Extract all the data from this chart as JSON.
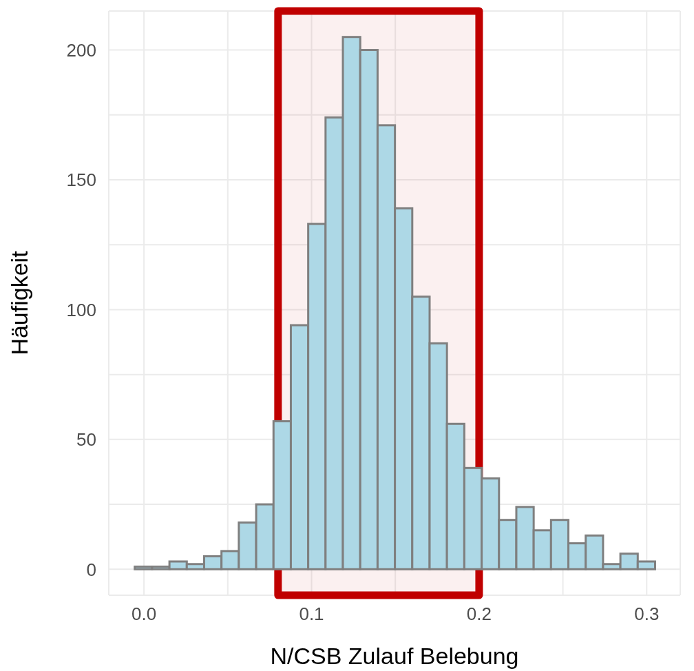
{
  "chart_data": {
    "type": "histogram",
    "xlabel": "N/CSB Zulauf Belebung",
    "ylabel": "Häufigkeit",
    "bins": [
      -0.0055,
      0.00485,
      0.0152,
      0.02555,
      0.0359,
      0.04625,
      0.0566,
      0.06695,
      0.0773,
      0.08765,
      0.098,
      0.10835,
      0.1187,
      0.12905,
      0.1394,
      0.14975,
      0.1601,
      0.17045,
      0.1808,
      0.19115,
      0.2015,
      0.21185,
      0.2222,
      0.23255,
      0.2429,
      0.25325,
      0.2636,
      0.27395,
      0.2843,
      0.29465,
      0.305
    ],
    "values": [
      1,
      1,
      3,
      2,
      5,
      7,
      18,
      25,
      57,
      94,
      133,
      174,
      205,
      200,
      171,
      139,
      105,
      87,
      56,
      39,
      35,
      19,
      24,
      15,
      19,
      10,
      13,
      2,
      6,
      3
    ],
    "color": "#add8e6",
    "xlim": [
      -0.021,
      0.32
    ],
    "xticks": [
      {
        "value": 0,
        "label": "0.0"
      },
      {
        "value": 0.05,
        "label": null
      },
      {
        "value": 0.1,
        "label": "0.1"
      },
      {
        "value": 0.15,
        "label": null
      },
      {
        "value": 0.2,
        "label": "0.2"
      },
      {
        "value": 0.25,
        "label": null
      },
      {
        "value": 0.3,
        "label": "0.3"
      }
    ],
    "ylim": [
      -10,
      215
    ],
    "yticks": [
      0,
      {
        "value": 25,
        "label": null
      },
      50,
      {
        "value": 75,
        "label": null
      },
      100,
      {
        "value": 125,
        "label": null
      },
      150,
      {
        "value": 175,
        "label": null
      },
      200
    ],
    "grid": true,
    "bands": [
      {
        "axis": "x",
        "from": 0.08,
        "to": 0.2,
        "color": "#c00000"
      }
    ]
  }
}
